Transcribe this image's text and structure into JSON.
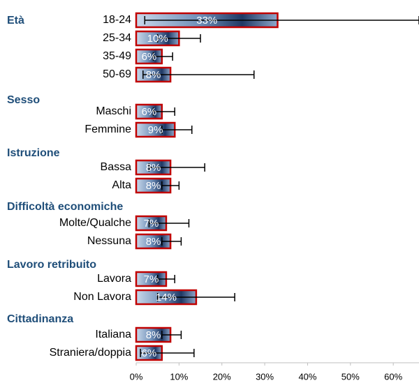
{
  "chart_data": {
    "type": "bar",
    "orientation": "horizontal",
    "color": "#1f3864",
    "border_color": "#c00000",
    "error_color": "#000000",
    "title_color": "#1f4e79",
    "groups": [
      {
        "name": "Età",
        "categories": [
          "18-24",
          "25-34",
          "35-49",
          "50-69"
        ],
        "values": [
          33,
          10,
          6,
          8
        ],
        "value_labels": [
          "33%",
          "10%",
          "6%",
          "8%"
        ],
        "ci_low": [
          2,
          5,
          4,
          1.6
        ],
        "ci_high": [
          66,
          15,
          8.5,
          27.5
        ]
      },
      {
        "name": "Sesso",
        "categories": [
          "Maschi",
          "Femmine"
        ],
        "values": [
          6,
          9
        ],
        "value_labels": [
          "6%",
          "9%"
        ],
        "ci_low": [
          4,
          6
        ],
        "ci_high": [
          9,
          13
        ]
      },
      {
        "name": "Istruzione",
        "categories": [
          "Bassa",
          "Alta"
        ],
        "values": [
          8,
          8
        ],
        "value_labels": [
          "8%",
          "8%"
        ],
        "ci_low": [
          3,
          6
        ],
        "ci_high": [
          16,
          10
        ]
      },
      {
        "name": "Difficoltà economiche",
        "categories": [
          "Molte/Qualche",
          "Nessuna"
        ],
        "values": [
          7,
          8
        ],
        "value_labels": [
          "7%",
          "8%"
        ],
        "ci_low": [
          3,
          6
        ],
        "ci_high": [
          12.3,
          10.5
        ]
      },
      {
        "name": "Lavoro retribuito",
        "categories": [
          "Lavora",
          "Non Lavora"
        ],
        "values": [
          7,
          14
        ],
        "value_labels": [
          "7%",
          "14%"
        ],
        "ci_low": [
          5,
          5
        ],
        "ci_high": [
          9,
          23
        ]
      },
      {
        "name": "Cittadinanza",
        "categories": [
          "Italiana",
          "Straniera/doppia"
        ],
        "values": [
          8,
          6
        ],
        "value_labels": [
          "8%",
          "6%"
        ],
        "ci_low": [
          6,
          1
        ],
        "ci_high": [
          10.5,
          13.5
        ]
      }
    ],
    "xlim": [
      0,
      66
    ],
    "xticks": [
      {
        "value": 0,
        "label": "0%"
      },
      {
        "value": 10,
        "label": "10%"
      },
      {
        "value": 20,
        "label": "20%"
      },
      {
        "value": 30,
        "label": "30%"
      },
      {
        "value": 40,
        "label": "40%"
      },
      {
        "value": 50,
        "label": "50%"
      },
      {
        "value": 60,
        "label": "60%"
      }
    ]
  }
}
